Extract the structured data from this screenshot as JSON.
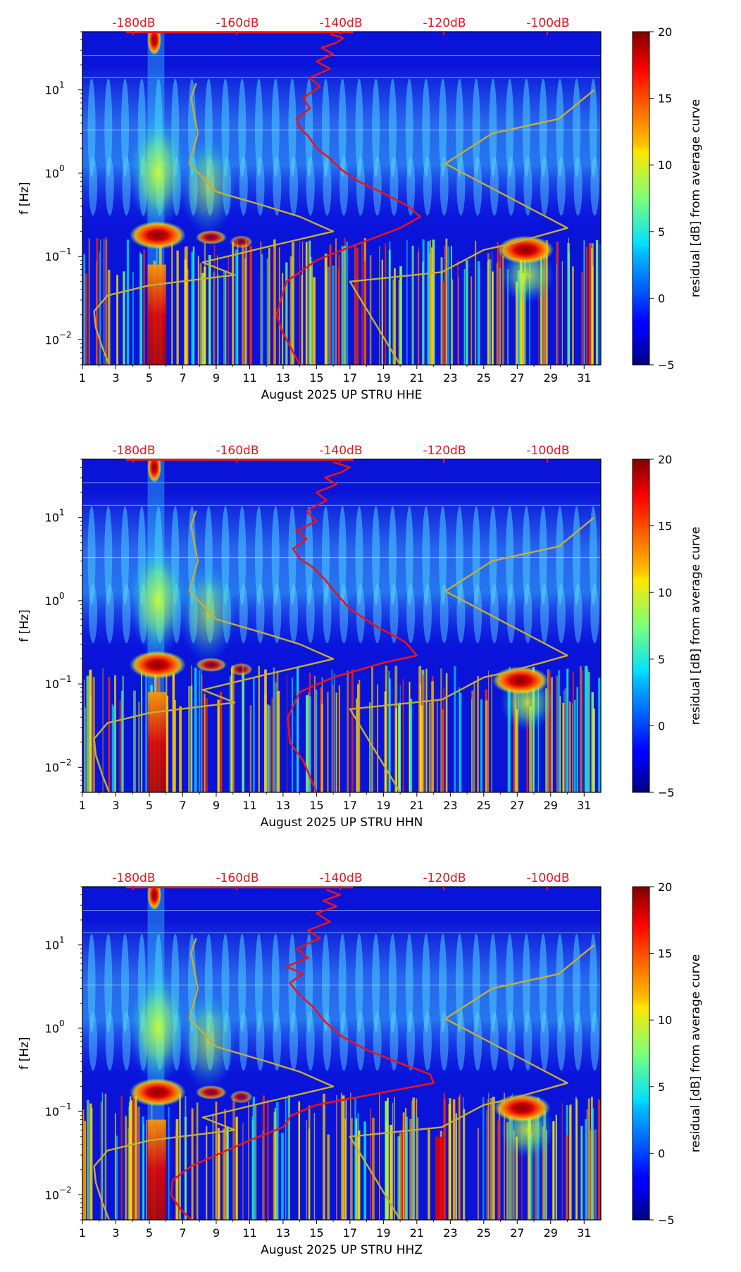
{
  "figure": {
    "x_ticks": [
      "1",
      "3",
      "5",
      "7",
      "9",
      "11",
      "13",
      "15",
      "17",
      "19",
      "21",
      "23",
      "25",
      "27",
      "29",
      "31"
    ],
    "y_ticks": [
      {
        "base": "10",
        "exp": "1"
      },
      {
        "base": "10",
        "exp": "0"
      },
      {
        "base": "10",
        "exp": "−1"
      },
      {
        "base": "10",
        "exp": "−2"
      }
    ],
    "db_scale_labels": [
      "-180dB",
      "-160dB",
      "-140dB",
      "-120dB",
      "-100dB"
    ],
    "ylabel": "f [Hz]",
    "colorbar": {
      "label": "residual [dB] from average curve",
      "ticks": [
        "20",
        "15",
        "10",
        "5",
        "0",
        "−5"
      ]
    }
  },
  "chart_data": [
    {
      "type": "heatmap",
      "title": "",
      "xlabel": "August 2025 UP STRU  HHE",
      "ylabel": "f [Hz]",
      "x_range": [
        1,
        32
      ],
      "y_range_hz": [
        0.005,
        50
      ],
      "y_scale": "log",
      "colorbar_range_db": [
        -5,
        20
      ],
      "hot_spots": [
        {
          "day": 5.5,
          "f_hz": 0.18,
          "residual_db": 20
        },
        {
          "day": 27.5,
          "f_hz": 0.12,
          "residual_db": 20
        },
        {
          "day": 5.3,
          "f_hz": 40,
          "residual_db": 20
        },
        {
          "day": 5.3,
          "f_hz": 0.01,
          "residual_db": 20
        }
      ],
      "series": [
        {
          "name": "average PSD (red)",
          "color": "#e8141c",
          "points_day_hz": [
            [
              14.0,
              0.005
            ],
            [
              13.0,
              0.012
            ],
            [
              12.6,
              0.02
            ],
            [
              13.2,
              0.05
            ],
            [
              15.0,
              0.09
            ],
            [
              17.0,
              0.13
            ],
            [
              20.0,
              0.22
            ],
            [
              21.2,
              0.3
            ],
            [
              20.5,
              0.4
            ],
            [
              19.2,
              0.55
            ],
            [
              17.5,
              0.8
            ],
            [
              16.5,
              1.1
            ],
            [
              15.8,
              1.5
            ],
            [
              15.0,
              2.0
            ],
            [
              14.5,
              2.8
            ],
            [
              14.0,
              3.5
            ],
            [
              13.8,
              4.5
            ],
            [
              14.6,
              6
            ],
            [
              14.2,
              8
            ],
            [
              15.2,
              11
            ],
            [
              14.6,
              14
            ],
            [
              15.8,
              18
            ],
            [
              15.0,
              22
            ],
            [
              16.0,
              27
            ],
            [
              15.3,
              32
            ],
            [
              16.2,
              37
            ],
            [
              16.6,
              42
            ],
            [
              15.8,
              47
            ]
          ]
        },
        {
          "name": "noise model low (olive)",
          "color": "#c3ae35",
          "points_day_hz": [
            [
              2.6,
              0.005
            ],
            [
              2.2,
              0.008
            ],
            [
              1.8,
              0.014
            ],
            [
              1.7,
              0.022
            ],
            [
              2.5,
              0.034
            ],
            [
              5.0,
              0.045
            ],
            [
              10.1,
              0.06
            ],
            [
              8.2,
              0.085
            ],
            [
              12.0,
              0.13
            ],
            [
              16.0,
              0.2
            ],
            [
              14.0,
              0.3
            ],
            [
              12.0,
              0.4
            ],
            [
              9.0,
              0.6
            ],
            [
              7.4,
              1.3
            ],
            [
              7.9,
              3.0
            ],
            [
              7.5,
              8.0
            ],
            [
              7.8,
              12
            ]
          ]
        },
        {
          "name": "noise model high (olive)",
          "color": "#c3ae35",
          "points_day_hz": [
            [
              20.0,
              0.005
            ],
            [
              17.0,
              0.05
            ],
            [
              22.5,
              0.065
            ],
            [
              25.0,
              0.12
            ],
            [
              26.5,
              0.14
            ],
            [
              30.0,
              0.22
            ],
            [
              22.7,
              1.3
            ],
            [
              25.5,
              3.0
            ],
            [
              29.5,
              4.5
            ],
            [
              31.6,
              10
            ]
          ]
        }
      ]
    },
    {
      "type": "heatmap",
      "title": "",
      "xlabel": "August 2025 UP STRU  HHN",
      "ylabel": "f [Hz]",
      "x_range": [
        1,
        32
      ],
      "y_range_hz": [
        0.005,
        50
      ],
      "y_scale": "log",
      "colorbar_range_db": [
        -5,
        20
      ],
      "hot_spots": [
        {
          "day": 5.5,
          "f_hz": 0.17,
          "residual_db": 20
        },
        {
          "day": 27.2,
          "f_hz": 0.11,
          "residual_db": 20
        },
        {
          "day": 5.3,
          "f_hz": 40,
          "residual_db": 20
        },
        {
          "day": 5.3,
          "f_hz": 0.01,
          "residual_db": 20
        }
      ],
      "series": [
        {
          "name": "average PSD (red)",
          "color": "#e8141c",
          "points_day_hz": [
            [
              15.0,
              0.005
            ],
            [
              14.2,
              0.012
            ],
            [
              13.4,
              0.02
            ],
            [
              13.3,
              0.04
            ],
            [
              14.0,
              0.08
            ],
            [
              16.0,
              0.12
            ],
            [
              19.0,
              0.18
            ],
            [
              21.0,
              0.22
            ],
            [
              20.3,
              0.32
            ],
            [
              18.5,
              0.5
            ],
            [
              17.0,
              0.8
            ],
            [
              16.2,
              1.2
            ],
            [
              15.5,
              1.8
            ],
            [
              14.8,
              2.5
            ],
            [
              14.0,
              3.2
            ],
            [
              13.6,
              4.2
            ],
            [
              14.4,
              5.5
            ],
            [
              13.8,
              7
            ],
            [
              15.0,
              9
            ],
            [
              14.4,
              12
            ],
            [
              15.6,
              16
            ],
            [
              15.0,
              20
            ],
            [
              16.2,
              25
            ],
            [
              15.5,
              30
            ],
            [
              16.5,
              35
            ],
            [
              17.0,
              40
            ],
            [
              16.0,
              46
            ]
          ]
        },
        {
          "name": "noise model low (olive)",
          "color": "#c3ae35",
          "points_day_hz": [
            [
              2.6,
              0.005
            ],
            [
              2.2,
              0.008
            ],
            [
              1.8,
              0.014
            ],
            [
              1.7,
              0.022
            ],
            [
              2.5,
              0.034
            ],
            [
              5.0,
              0.045
            ],
            [
              10.1,
              0.06
            ],
            [
              8.2,
              0.085
            ],
            [
              12.0,
              0.13
            ],
            [
              16.0,
              0.2
            ],
            [
              14.0,
              0.3
            ],
            [
              12.0,
              0.4
            ],
            [
              9.0,
              0.6
            ],
            [
              7.4,
              1.3
            ],
            [
              7.9,
              3.0
            ],
            [
              7.5,
              8.0
            ],
            [
              7.8,
              12
            ]
          ]
        },
        {
          "name": "noise model high (olive)",
          "color": "#c3ae35",
          "points_day_hz": [
            [
              20.0,
              0.005
            ],
            [
              17.0,
              0.05
            ],
            [
              22.5,
              0.065
            ],
            [
              25.0,
              0.12
            ],
            [
              26.5,
              0.14
            ],
            [
              30.0,
              0.22
            ],
            [
              22.7,
              1.3
            ],
            [
              25.5,
              3.0
            ],
            [
              29.5,
              4.5
            ],
            [
              31.6,
              10
            ]
          ]
        }
      ]
    },
    {
      "type": "heatmap",
      "title": "",
      "xlabel": "August 2025 UP STRU  HHZ",
      "ylabel": "f [Hz]",
      "x_range": [
        1,
        32
      ],
      "y_range_hz": [
        0.005,
        50
      ],
      "y_scale": "log",
      "colorbar_range_db": [
        -5,
        20
      ],
      "hot_spots": [
        {
          "day": 5.5,
          "f_hz": 0.17,
          "residual_db": 20
        },
        {
          "day": 27.3,
          "f_hz": 0.11,
          "residual_db": 20
        },
        {
          "day": 5.3,
          "f_hz": 40,
          "residual_db": 20
        },
        {
          "day": 22.3,
          "f_hz": 0.01,
          "residual_db": 20
        }
      ],
      "series": [
        {
          "name": "average PSD (red)",
          "color": "#e8141c",
          "points_day_hz": [
            [
              7.5,
              0.005
            ],
            [
              6.8,
              0.007
            ],
            [
              6.3,
              0.01
            ],
            [
              6.4,
              0.015
            ],
            [
              7.5,
              0.022
            ],
            [
              9.0,
              0.03
            ],
            [
              11.0,
              0.045
            ],
            [
              13.0,
              0.065
            ],
            [
              13.5,
              0.09
            ],
            [
              15.0,
              0.12
            ],
            [
              19.0,
              0.17
            ],
            [
              22.0,
              0.22
            ],
            [
              21.8,
              0.28
            ],
            [
              20.0,
              0.38
            ],
            [
              18.0,
              0.55
            ],
            [
              16.5,
              0.8
            ],
            [
              15.5,
              1.2
            ],
            [
              14.8,
              1.8
            ],
            [
              14.0,
              2.5
            ],
            [
              13.4,
              3.5
            ],
            [
              14.2,
              4.5
            ],
            [
              13.2,
              5.5
            ],
            [
              14.5,
              7
            ],
            [
              13.8,
              9
            ],
            [
              15.2,
              12
            ],
            [
              14.5,
              15
            ],
            [
              15.8,
              19
            ],
            [
              15.0,
              24
            ],
            [
              16.2,
              29
            ],
            [
              15.4,
              34
            ],
            [
              16.4,
              40
            ],
            [
              15.6,
              46
            ]
          ]
        },
        {
          "name": "noise model low (olive)",
          "color": "#c3ae35",
          "points_day_hz": [
            [
              2.6,
              0.005
            ],
            [
              2.2,
              0.008
            ],
            [
              1.8,
              0.014
            ],
            [
              1.7,
              0.022
            ],
            [
              2.5,
              0.034
            ],
            [
              5.0,
              0.045
            ],
            [
              10.1,
              0.06
            ],
            [
              8.2,
              0.085
            ],
            [
              12.0,
              0.13
            ],
            [
              16.0,
              0.2
            ],
            [
              14.0,
              0.3
            ],
            [
              12.0,
              0.4
            ],
            [
              9.0,
              0.6
            ],
            [
              7.4,
              1.3
            ],
            [
              7.9,
              3.0
            ],
            [
              7.5,
              8.0
            ],
            [
              7.8,
              12
            ]
          ]
        },
        {
          "name": "noise model high (olive)",
          "color": "#c3ae35",
          "points_day_hz": [
            [
              20.0,
              0.005
            ],
            [
              17.0,
              0.05
            ],
            [
              22.5,
              0.065
            ],
            [
              25.0,
              0.12
            ],
            [
              26.5,
              0.14
            ],
            [
              30.0,
              0.22
            ],
            [
              22.7,
              1.3
            ],
            [
              25.5,
              3.0
            ],
            [
              29.5,
              4.5
            ],
            [
              31.6,
              10
            ]
          ]
        }
      ]
    }
  ]
}
